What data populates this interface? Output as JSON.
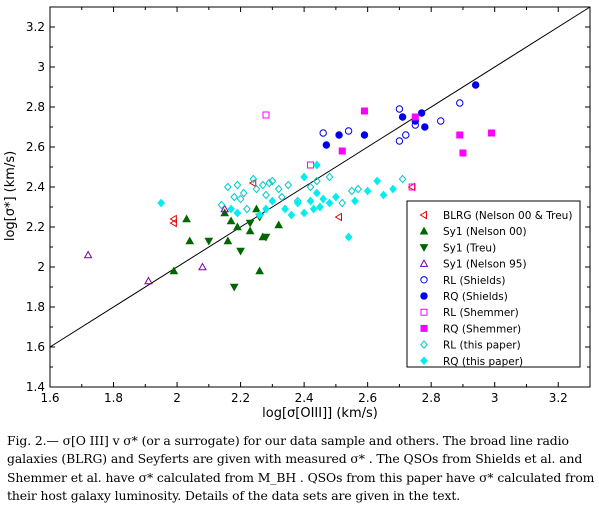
{
  "chart_data": {
    "type": "scatter",
    "xlabel": "log[σ[OIII]] (km/s)",
    "ylabel": "log[σ*] (km/s)",
    "xlim": [
      1.6,
      3.3
    ],
    "ylim": [
      1.4,
      3.3
    ],
    "x_ticks": [
      "1.6",
      "1.8",
      "2",
      "2.2",
      "2.4",
      "2.6",
      "2.8",
      "3",
      "3.2"
    ],
    "y_ticks": [
      "1.4",
      "1.6",
      "1.8",
      "2",
      "2.2",
      "2.4",
      "2.6",
      "2.8",
      "3",
      "3.2"
    ],
    "reference_line": {
      "label": "",
      "slope": 1,
      "intercept": 0
    },
    "grid": false,
    "legend_position": "bottom-right",
    "series": [
      {
        "name": "BLRG (Nelson 00 & Treu)",
        "marker": "triangle-left-open",
        "color": "#dd0000",
        "points": [
          [
            1.99,
            2.22
          ],
          [
            1.99,
            2.24
          ],
          [
            2.24,
            2.42
          ],
          [
            2.51,
            2.25
          ],
          [
            2.74,
            2.4
          ]
        ]
      },
      {
        "name": "Sy1 (Nelson 00)",
        "marker": "triangle-up-filled",
        "color": "#006600",
        "points": [
          [
            1.99,
            1.98
          ],
          [
            2.03,
            2.24
          ],
          [
            2.04,
            2.13
          ],
          [
            2.15,
            2.27
          ],
          [
            2.16,
            2.13
          ],
          [
            2.17,
            2.23
          ],
          [
            2.19,
            2.2
          ],
          [
            2.23,
            2.18
          ],
          [
            2.25,
            2.29
          ],
          [
            2.26,
            1.98
          ],
          [
            2.27,
            2.15
          ],
          [
            2.32,
            2.21
          ]
        ]
      },
      {
        "name": "Sy1 (Treu)",
        "marker": "triangle-down-filled",
        "color": "#006600",
        "points": [
          [
            2.1,
            2.13
          ],
          [
            2.18,
            1.9
          ],
          [
            2.2,
            2.08
          ],
          [
            2.23,
            2.22
          ],
          [
            2.26,
            2.25
          ],
          [
            2.28,
            2.15
          ]
        ]
      },
      {
        "name": "Sy1 (Nelson 95)",
        "marker": "triangle-up-open",
        "color": "#7700aa",
        "points": [
          [
            1.72,
            2.06
          ],
          [
            1.91,
            1.93
          ],
          [
            2.08,
            2.0
          ],
          [
            2.15,
            2.29
          ]
        ]
      },
      {
        "name": "RL (Shields)",
        "marker": "circle-open",
        "color": "#0000ee",
        "points": [
          [
            2.46,
            2.67
          ],
          [
            2.54,
            2.68
          ],
          [
            2.7,
            2.79
          ],
          [
            2.72,
            2.66
          ],
          [
            2.7,
            2.63
          ],
          [
            2.75,
            2.71
          ],
          [
            2.83,
            2.73
          ],
          [
            2.89,
            2.82
          ]
        ]
      },
      {
        "name": "RQ (Shields)",
        "marker": "circle-filled",
        "color": "#0000ee",
        "points": [
          [
            2.47,
            2.61
          ],
          [
            2.51,
            2.66
          ],
          [
            2.59,
            2.66
          ],
          [
            2.71,
            2.75
          ],
          [
            2.75,
            2.73
          ],
          [
            2.77,
            2.77
          ],
          [
            2.78,
            2.7
          ],
          [
            2.94,
            2.91
          ]
        ]
      },
      {
        "name": "RL (Shemmer)",
        "marker": "square-open",
        "color": "#ff00ff",
        "points": [
          [
            2.28,
            2.76
          ],
          [
            2.42,
            2.51
          ],
          [
            2.74,
            2.4
          ]
        ]
      },
      {
        "name": "RQ (Shemmer)",
        "marker": "square-filled",
        "color": "#ff00ff",
        "points": [
          [
            2.52,
            2.58
          ],
          [
            2.59,
            2.78
          ],
          [
            2.75,
            2.75
          ],
          [
            2.89,
            2.66
          ],
          [
            2.9,
            2.57
          ],
          [
            2.99,
            2.67
          ]
        ]
      },
      {
        "name": "RL (this paper)",
        "marker": "diamond-open",
        "color": "#00cccc",
        "points": [
          [
            2.14,
            2.31
          ],
          [
            2.16,
            2.4
          ],
          [
            2.18,
            2.35
          ],
          [
            2.19,
            2.41
          ],
          [
            2.2,
            2.34
          ],
          [
            2.21,
            2.37
          ],
          [
            2.22,
            2.29
          ],
          [
            2.24,
            2.44
          ],
          [
            2.25,
            2.39
          ],
          [
            2.27,
            2.41
          ],
          [
            2.28,
            2.36
          ],
          [
            2.29,
            2.42
          ],
          [
            2.3,
            2.43
          ],
          [
            2.32,
            2.39
          ],
          [
            2.33,
            2.35
          ],
          [
            2.35,
            2.41
          ],
          [
            2.38,
            2.33
          ],
          [
            2.42,
            2.4
          ],
          [
            2.44,
            2.43
          ],
          [
            2.48,
            2.45
          ],
          [
            2.52,
            2.32
          ],
          [
            2.55,
            2.38
          ],
          [
            2.57,
            2.39
          ],
          [
            2.71,
            2.44
          ]
        ]
      },
      {
        "name": "RQ (this paper)",
        "marker": "diamond-filled",
        "color": "#00eeee",
        "points": [
          [
            1.95,
            2.32
          ],
          [
            2.17,
            2.29
          ],
          [
            2.19,
            2.27
          ],
          [
            2.26,
            2.26
          ],
          [
            2.28,
            2.29
          ],
          [
            2.3,
            2.33
          ],
          [
            2.34,
            2.29
          ],
          [
            2.36,
            2.26
          ],
          [
            2.38,
            2.32
          ],
          [
            2.4,
            2.27
          ],
          [
            2.42,
            2.33
          ],
          [
            2.43,
            2.29
          ],
          [
            2.44,
            2.37
          ],
          [
            2.45,
            2.3
          ],
          [
            2.46,
            2.34
          ],
          [
            2.48,
            2.32
          ],
          [
            2.5,
            2.35
          ],
          [
            2.54,
            2.15
          ],
          [
            2.56,
            2.33
          ],
          [
            2.6,
            2.38
          ],
          [
            2.63,
            2.43
          ],
          [
            2.65,
            2.36
          ],
          [
            2.68,
            2.39
          ],
          [
            2.44,
            2.51
          ],
          [
            2.4,
            2.45
          ]
        ]
      }
    ]
  },
  "caption": {
    "text": "Fig. 2.— σ[O III] v σ* (or a surrogate) for our data sample and others. The broad line radio galaxies (BLRG) and Seyferts are given with measured σ* . The QSOs from Shields et al. and Shemmer et al. have σ* calculated from M_BH . QSOs from this paper have σ* calculated from their host galaxy luminosity. Details of the data sets are given in the text."
  }
}
